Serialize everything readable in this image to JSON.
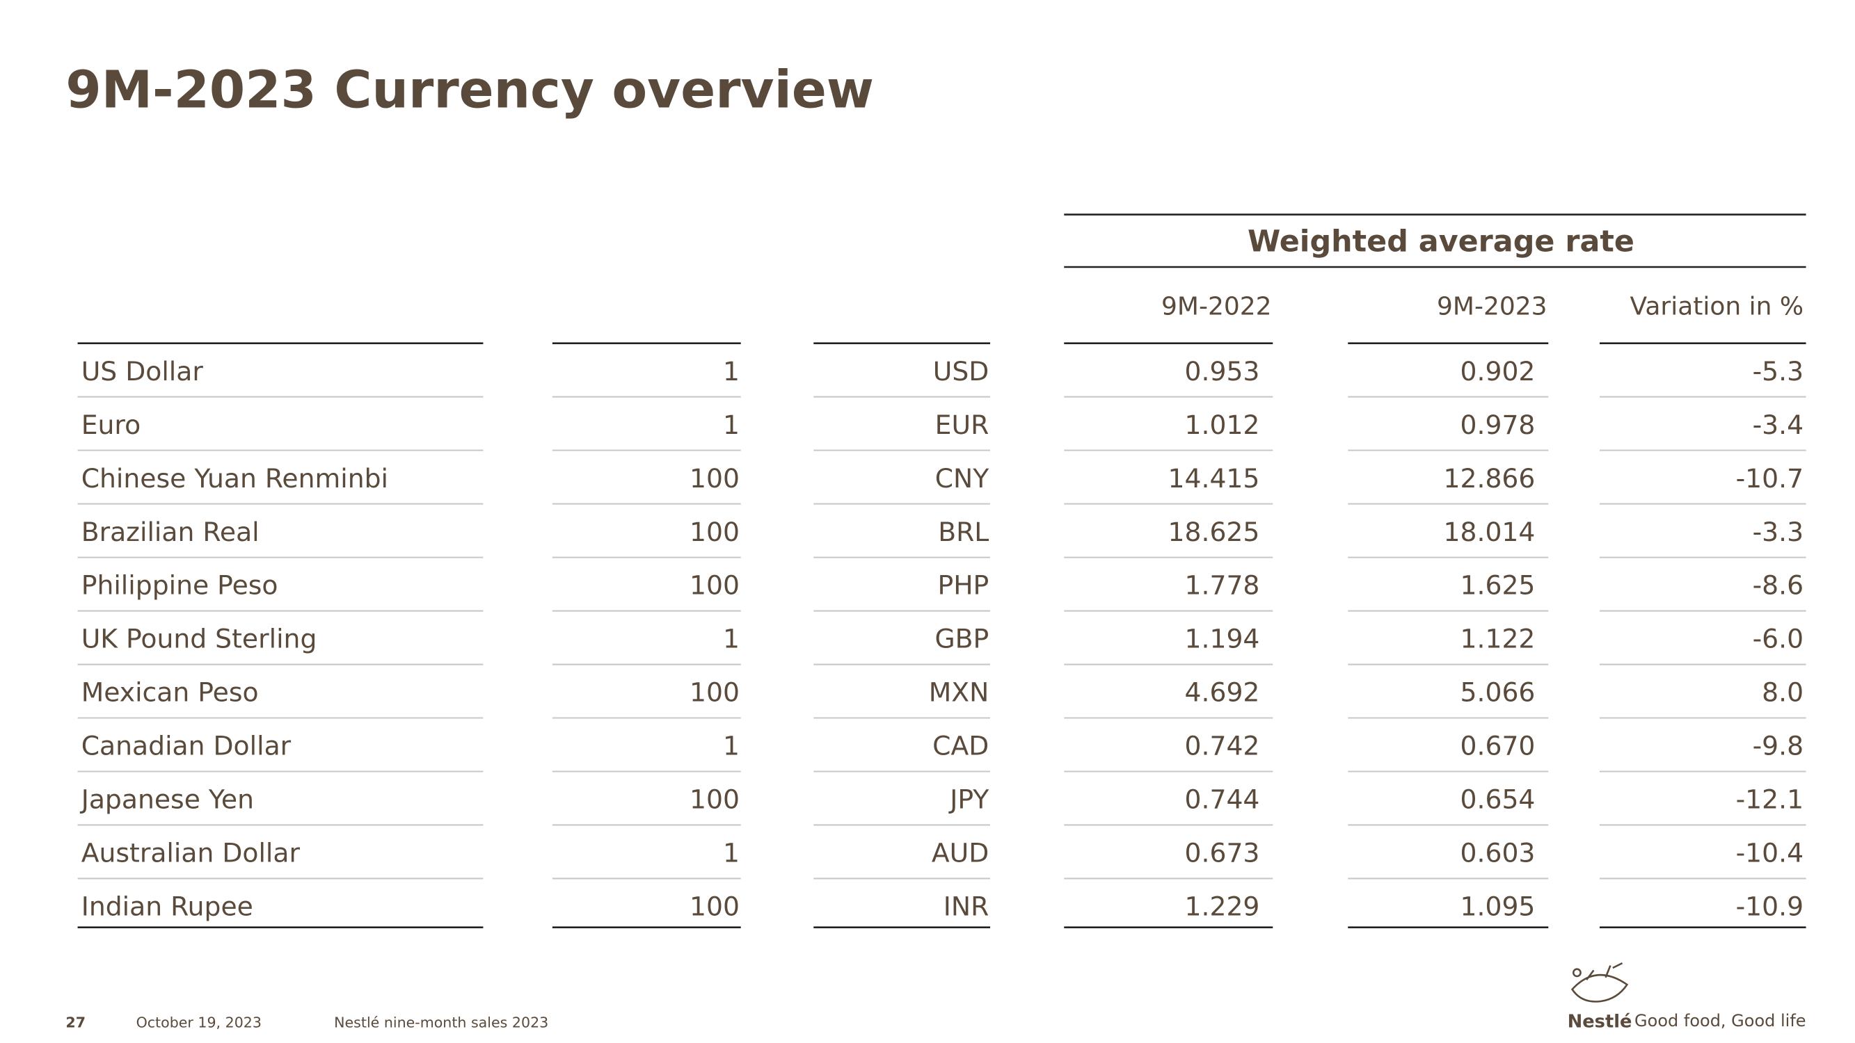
{
  "title": "9M-2023 Currency overview",
  "table": {
    "group_header": "Weighted average rate",
    "columns": [
      "9M-2022",
      "9M-2023",
      "Variation in %"
    ],
    "rows": [
      [
        "US Dollar",
        "1",
        "USD",
        "0.953",
        "0.902",
        "-5.3"
      ],
      [
        "Euro",
        "1",
        "EUR",
        "1.012",
        "0.978",
        "-3.4"
      ],
      [
        "Chinese Yuan Renminbi",
        "100",
        "CNY",
        "14.415",
        "12.866",
        "-10.7"
      ],
      [
        "Brazilian Real",
        "100",
        "BRL",
        "18.625",
        "18.014",
        "-3.3"
      ],
      [
        "Philippine Peso",
        "100",
        "PHP",
        "1.778",
        "1.625",
        "-8.6"
      ],
      [
        "UK Pound Sterling",
        "1",
        "GBP",
        "1.194",
        "1.122",
        "-6.0"
      ],
      [
        "Mexican Peso",
        "100",
        "MXN",
        "4.692",
        "5.066",
        "8.0"
      ],
      [
        "Canadian Dollar",
        "1",
        "CAD",
        "0.742",
        "0.670",
        "-9.8"
      ],
      [
        "Japanese Yen",
        "100",
        "JPY",
        "0.744",
        "0.654",
        "-12.1"
      ],
      [
        "Australian Dollar",
        "1",
        "AUD",
        "0.673",
        "0.603",
        "-10.4"
      ],
      [
        "Indian Rupee",
        "100",
        "INR",
        "1.229",
        "1.095",
        "-10.9"
      ]
    ]
  },
  "footer": {
    "page": "27",
    "date": "October 19, 2023",
    "report": "Nestlé nine-month sales 2023",
    "brand": "Nestlé",
    "tagline": "Good food, Good life"
  }
}
